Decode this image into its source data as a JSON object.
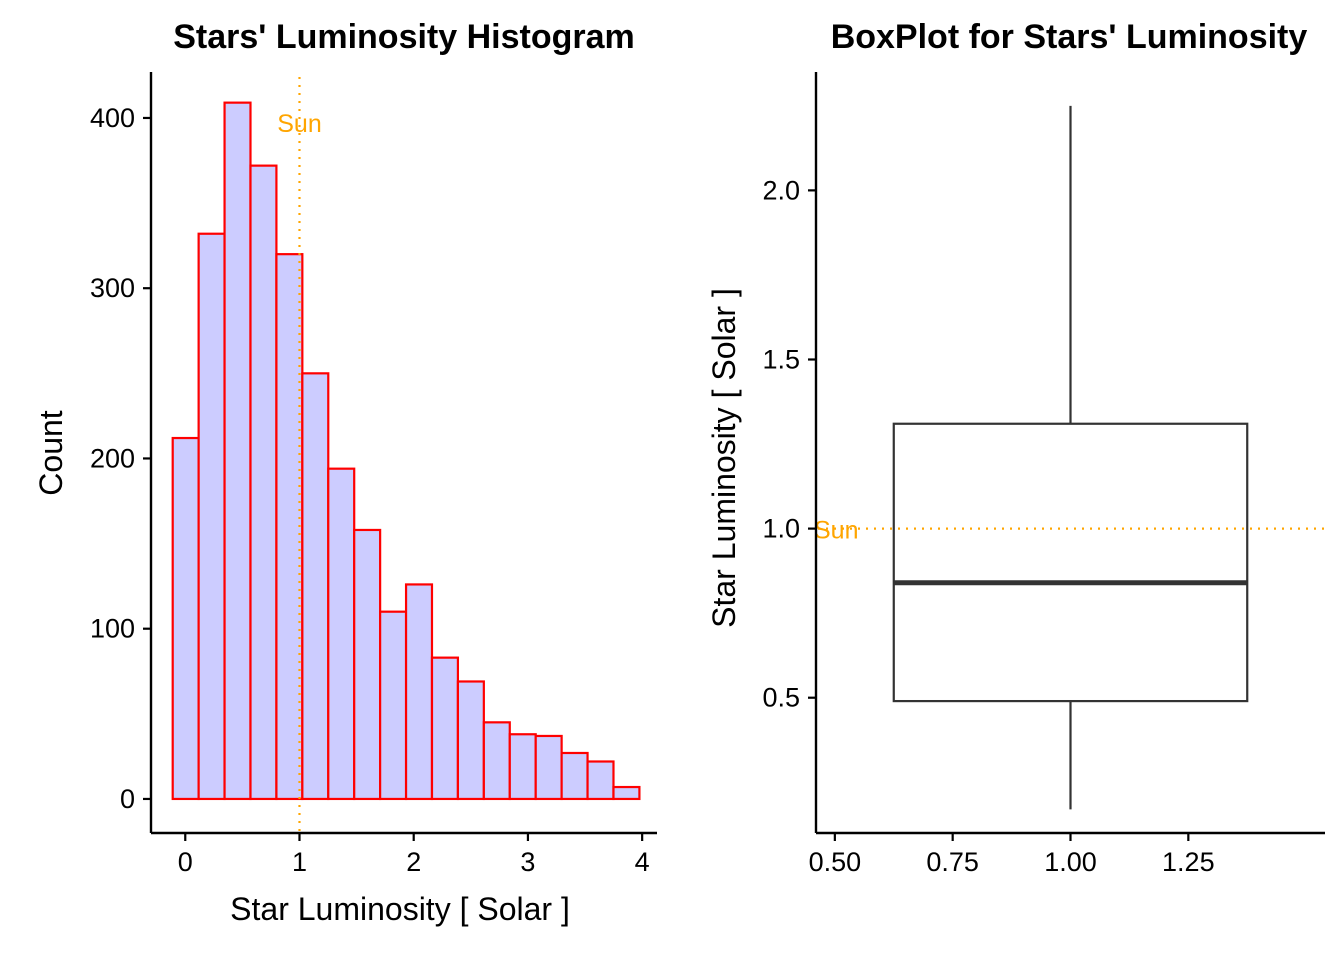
{
  "colors": {
    "bar_fill": "#ccccff",
    "bar_stroke": "#ff0000",
    "reference": "#ffa500",
    "axis": "#000000",
    "box_stroke": "#333333"
  },
  "chart_data": [
    {
      "type": "bar",
      "subtype": "histogram",
      "title": "Stars' Luminosity Histogram",
      "xlabel": "Star  Luminosity  [ Solar ]",
      "ylabel": "Count",
      "bin_width": 0.227,
      "bins": [
        {
          "x0": -0.11,
          "x1": 0.117,
          "count": 212
        },
        {
          "x0": 0.117,
          "x1": 0.344,
          "count": 332
        },
        {
          "x0": 0.344,
          "x1": 0.571,
          "count": 409
        },
        {
          "x0": 0.571,
          "x1": 0.798,
          "count": 372
        },
        {
          "x0": 0.798,
          "x1": 1.025,
          "count": 320
        },
        {
          "x0": 1.025,
          "x1": 1.252,
          "count": 250
        },
        {
          "x0": 1.252,
          "x1": 1.479,
          "count": 194
        },
        {
          "x0": 1.479,
          "x1": 1.706,
          "count": 158
        },
        {
          "x0": 1.706,
          "x1": 1.933,
          "count": 110
        },
        {
          "x0": 1.933,
          "x1": 2.16,
          "count": 126
        },
        {
          "x0": 2.16,
          "x1": 2.387,
          "count": 83
        },
        {
          "x0": 2.387,
          "x1": 2.614,
          "count": 69
        },
        {
          "x0": 2.614,
          "x1": 2.841,
          "count": 45
        },
        {
          "x0": 2.841,
          "x1": 3.068,
          "count": 38
        },
        {
          "x0": 3.068,
          "x1": 3.295,
          "count": 37
        },
        {
          "x0": 3.295,
          "x1": 3.522,
          "count": 27
        },
        {
          "x0": 3.522,
          "x1": 3.749,
          "count": 22
        },
        {
          "x0": 3.749,
          "x1": 3.976,
          "count": 7
        }
      ],
      "xlim": [
        -0.3,
        4.13
      ],
      "ylim": [
        -20,
        427
      ],
      "xticks": [
        0,
        1,
        2,
        3,
        4
      ],
      "xtick_labels": [
        "0",
        "1",
        "2",
        "3",
        "4"
      ],
      "yticks": [
        0,
        100,
        200,
        300,
        400
      ],
      "ytick_labels": [
        "0",
        "100",
        "200",
        "300",
        "400"
      ],
      "reference_line": {
        "axis": "x",
        "value": 1,
        "style": "dotted",
        "label": "Sun"
      },
      "grid": false,
      "legend": "none"
    },
    {
      "type": "box",
      "title": "BoxPlot for Stars' Luminosity",
      "xlabel": "",
      "ylabel": "Star  Luminosity  [ Solar ]",
      "box": {
        "x": 1.0,
        "width": 0.75,
        "whisker_low": 0.17,
        "q1": 0.49,
        "median": 0.84,
        "q3": 1.31,
        "whisker_high": 2.25
      },
      "xlim": [
        0.46,
        1.54
      ],
      "ylim": [
        0.1,
        2.35
      ],
      "xticks": [
        0.5,
        0.75,
        1.0,
        1.25
      ],
      "xtick_labels": [
        "0.50",
        "0.75",
        "1.00",
        "1.25"
      ],
      "yticks": [
        0.5,
        1.0,
        1.5,
        2.0
      ],
      "ytick_labels": [
        "0.5",
        "1.0",
        "1.5",
        "2.0"
      ],
      "reference_line": {
        "axis": "y",
        "value": 1,
        "style": "dotted",
        "label": "Sun"
      },
      "grid": false,
      "legend": "none"
    }
  ]
}
